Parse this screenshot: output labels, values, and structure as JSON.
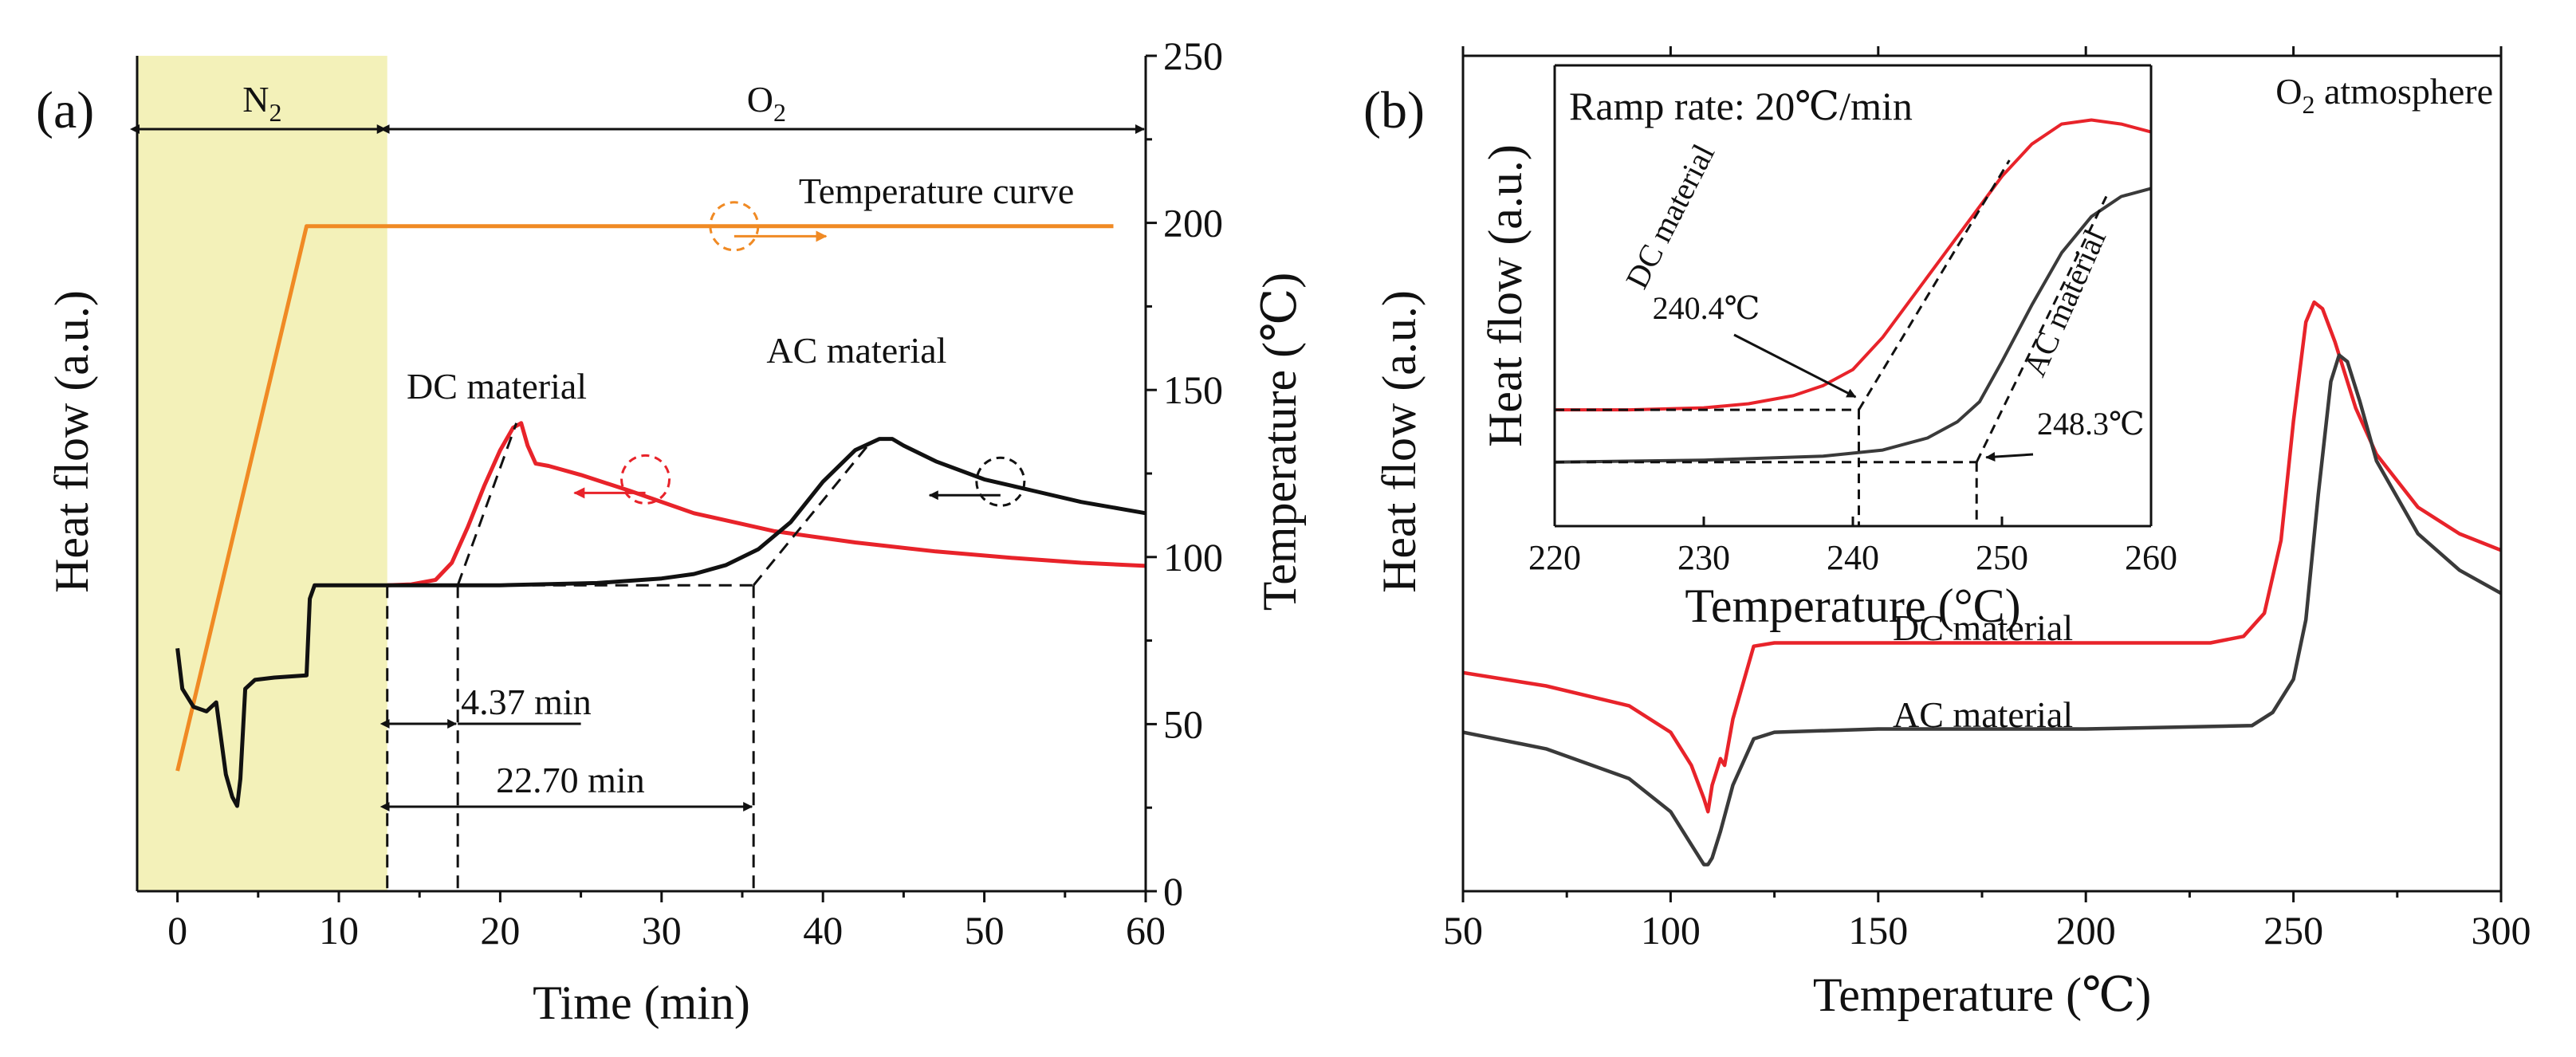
{
  "chart_data": [
    {
      "panel": "(a)",
      "type": "line",
      "xlabel": "Time (min)",
      "ylabel_left": "Heat flow (a.u.)",
      "ylabel_right": "Temperature (℃)",
      "xlim": [
        -2.5,
        60
      ],
      "xticks": [
        0,
        10,
        20,
        30,
        40,
        50,
        60
      ],
      "y2lim": [
        0,
        250
      ],
      "y2ticks": [
        0,
        50,
        100,
        150,
        200,
        250
      ],
      "heat_flow_scale": "arbitrary units 0-100",
      "shaded_region": {
        "label": "N2",
        "label_main": "N",
        "label_sub": "2",
        "x_range": [
          -2.5,
          13
        ],
        "color": "#f3f1b9"
      },
      "regions": [
        {
          "label": "N2",
          "main": "N",
          "sub": "2",
          "x_range": [
            -2.5,
            13
          ]
        },
        {
          "label": "O2",
          "main": "O",
          "sub": "2",
          "x_range": [
            13,
            60
          ]
        }
      ],
      "series": [
        {
          "name": "Temperature curve",
          "axis": "right",
          "color": "#f08a24",
          "x": [
            0,
            8,
            58
          ],
          "y": [
            36,
            199,
            199
          ]
        },
        {
          "name": "DC material",
          "axis": "left",
          "color": "#e8232a",
          "x": [
            13,
            14.5,
            16,
            17,
            18,
            19,
            20,
            20.8,
            21.3,
            21.7,
            22.2,
            23,
            25,
            28,
            32,
            37,
            42,
            47,
            52,
            56,
            60
          ],
          "y": [
            52,
            52.2,
            53.2,
            57,
            65,
            74,
            82,
            87,
            88,
            83,
            79,
            78.5,
            76.5,
            73,
            68,
            64,
            61.5,
            59.5,
            58,
            57,
            56.3
          ]
        },
        {
          "name": "AC material",
          "axis": "left",
          "color": "#111111",
          "x": [
            0,
            0.3,
            1,
            1.8,
            2.4,
            3,
            3.4,
            3.7,
            3.9,
            4.2,
            4.8,
            6,
            8,
            8.2,
            8.5,
            13,
            20,
            26,
            30,
            32,
            34,
            36,
            38,
            40,
            42,
            43.5,
            44.3,
            45,
            47,
            50,
            53,
            56,
            60
          ],
          "y": [
            38,
            29,
            25,
            24,
            26,
            10,
            5,
            3,
            9,
            29,
            31,
            31.5,
            32,
            49,
            52,
            52,
            52,
            52.5,
            53.5,
            54.5,
            56.5,
            60,
            66,
            75,
            82,
            84.5,
            84.5,
            83,
            79.5,
            75.5,
            73,
            70.5,
            68
          ]
        }
      ],
      "annotations": [
        {
          "text": "Temperature curve"
        },
        {
          "text": "DC material"
        },
        {
          "text": "AC material"
        },
        {
          "text": "4.37 min",
          "from": 13,
          "to": 17.37
        },
        {
          "text": "22.70 min",
          "from": 13,
          "to": 35.7
        }
      ],
      "onset_baseline_level": 52,
      "onset_times": [
        17.37,
        35.7
      ]
    },
    {
      "panel": "(b)",
      "type": "line",
      "title": "O2 atmosphere",
      "title_main": "O",
      "title_sub": "2",
      "title_rest": " atmosphere",
      "xlabel": "Temperature (℃)",
      "ylabel": "Heat flow (a.u.)",
      "xlim": [
        50,
        300
      ],
      "xticks": [
        50,
        100,
        150,
        200,
        250,
        300
      ],
      "heat_flow_scale": "arbitrary units 0-100",
      "series": [
        {
          "name": "DC material",
          "color": "#e8232a",
          "x": [
            50,
            70,
            90,
            100,
            105,
            108,
            109,
            110,
            112,
            113,
            115,
            120,
            125,
            150,
            200,
            230,
            238,
            243,
            247,
            250,
            253,
            255,
            257,
            260,
            265,
            270,
            280,
            290,
            300
          ],
          "y": [
            27,
            25,
            22,
            18,
            13,
            8,
            6,
            10,
            14,
            13,
            20,
            31,
            31.5,
            31.5,
            31.5,
            31.5,
            32.5,
            36,
            47,
            65,
            80,
            83,
            82,
            77,
            67,
            60,
            52,
            48,
            45.5
          ]
        },
        {
          "name": "AC material",
          "color": "#3a3a3a",
          "x": [
            50,
            70,
            90,
            100,
            105,
            108,
            109,
            110,
            112,
            115,
            120,
            125,
            150,
            200,
            240,
            245,
            250,
            253,
            256,
            259,
            261,
            263,
            266,
            270,
            280,
            290,
            300
          ],
          "y": [
            18,
            15.5,
            11,
            6,
            1,
            -2,
            -2,
            -1,
            3,
            10,
            17,
            18,
            18.5,
            18.5,
            19,
            21,
            26,
            35,
            54,
            71,
            75,
            74,
            68,
            59,
            48,
            42.5,
            39
          ]
        }
      ],
      "labels": [
        {
          "text": "DC material"
        },
        {
          "text": "AC material"
        }
      ],
      "inset": {
        "title": "Ramp rate: 20℃/min",
        "xlabel": "Temperature (°C)",
        "ylabel": "Heat flow (a.u.)",
        "xlim": [
          220,
          260
        ],
        "xticks": [
          220,
          230,
          240,
          250,
          260
        ],
        "series": [
          {
            "name": "DC material",
            "color": "#e8232a",
            "x": [
              220,
              225,
              230,
              233,
              236,
              238,
              240,
              242,
              244,
              246,
              248,
              250,
              252,
              254,
              256,
              258,
              260
            ],
            "y": [
              18,
              18,
              18.5,
              19.5,
              21.5,
              24,
              28,
              36,
              46,
              56,
              66,
              76,
              84,
              89,
              90,
              89,
              87
            ]
          },
          {
            "name": "AC material",
            "color": "#3a3a3a",
            "x": [
              220,
              230,
              238,
              242,
              245,
              247,
              248.5,
              250,
              252,
              254,
              256,
              258,
              260
            ],
            "y": [
              5,
              5.5,
              6.5,
              8,
              11,
              15,
              20,
              30,
              44,
              57,
              66,
              71,
              73
            ]
          }
        ],
        "onsets": [
          {
            "text": "240.4℃",
            "value": 240.4
          },
          {
            "text": "248.3℃",
            "value": 248.3
          }
        ],
        "curve_labels": [
          {
            "text": "DC material"
          },
          {
            "text": "AC material"
          }
        ]
      }
    }
  ]
}
